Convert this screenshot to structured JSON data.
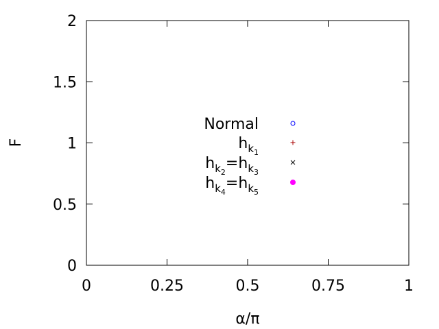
{
  "chart_data": {
    "type": "scatter",
    "title": "",
    "xlabel": "α/π",
    "ylabel": "F",
    "xlim": [
      0,
      1
    ],
    "ylim": [
      0,
      2
    ],
    "xticks": [
      {
        "value": 0,
        "label": "0"
      },
      {
        "value": 0.25,
        "label": "0.25"
      },
      {
        "value": 0.5,
        "label": "0.5"
      },
      {
        "value": 0.75,
        "label": "0.75"
      },
      {
        "value": 1,
        "label": "1"
      }
    ],
    "yticks": [
      {
        "value": 0,
        "label": "0"
      },
      {
        "value": 0.5,
        "label": "0.5"
      },
      {
        "value": 1,
        "label": "1"
      },
      {
        "value": 1.5,
        "label": "1.5"
      },
      {
        "value": 2,
        "label": "2"
      }
    ],
    "grid": false,
    "legend_position": "center",
    "series": [
      {
        "name": "Normal",
        "label": {
          "base": "Normal"
        },
        "marker": "open-circle",
        "color": "#0000ff",
        "points": []
      },
      {
        "name": "h_k1",
        "label": {
          "base": "h",
          "sub": "k",
          "subsub": "1"
        },
        "marker": "plus",
        "color": "#aa0000",
        "points": []
      },
      {
        "name": "h_k2=h_k3",
        "label": {
          "base": "h",
          "sub": "k",
          "subsub": "2",
          "eq": "=",
          "base2": "h",
          "sub2": "k",
          "subsub2": "3"
        },
        "marker": "cross",
        "color": "#000000",
        "points": []
      },
      {
        "name": "h_k4=h_k5",
        "label": {
          "base": "h",
          "sub": "k",
          "subsub": "4",
          "eq": "=",
          "base2": "h",
          "sub2": "k",
          "subsub2": "5"
        },
        "marker": "filled-circle",
        "color": "#ff00ff",
        "points": []
      }
    ]
  }
}
